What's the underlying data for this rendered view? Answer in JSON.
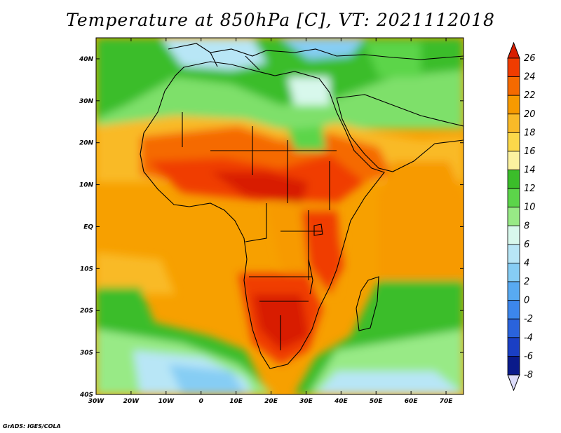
{
  "title": "Temperature at 850hPa [C], VT: 2021112018",
  "credit": "GrADS: IGES/COLA",
  "map": {
    "lat_ticks": [
      "40N",
      "30N",
      "20N",
      "10N",
      "EQ",
      "10S",
      "20S",
      "30S",
      "40S"
    ],
    "lon_ticks": [
      "30W",
      "20W",
      "10W",
      "0",
      "10E",
      "20E",
      "30E",
      "40E",
      "50E",
      "60E",
      "70E"
    ],
    "lon_range": [
      -30,
      75
    ],
    "lat_range": [
      -40,
      45
    ]
  },
  "colorbar": {
    "labels": [
      "26",
      "24",
      "22",
      "20",
      "18",
      "16",
      "14",
      "12",
      "10",
      "8",
      "6",
      "4",
      "2",
      "0",
      "-2",
      "-4",
      "-6",
      "-8"
    ],
    "colors_top_to_bottom": [
      "#d81e00",
      "#f03c00",
      "#f56a00",
      "#f79a00",
      "#f9ba28",
      "#fbd84a",
      "#fcf2a0",
      "#3bbd2a",
      "#5cd54a",
      "#98ea86",
      "#d8f8ec",
      "#b8e6f6",
      "#86cdf4",
      "#58aaf2",
      "#3c86ec",
      "#2a63dc",
      "#1a3fc4",
      "#0a1a8a",
      "#dcdcfa"
    ]
  }
}
